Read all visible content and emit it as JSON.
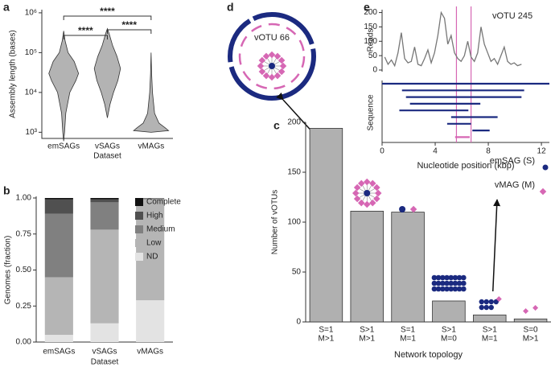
{
  "panel_labels": [
    "a",
    "b",
    "c",
    "d",
    "e"
  ],
  "diagram_d": {
    "label": "vOTU 66"
  },
  "chart_data": [
    {
      "type": "violin",
      "categories": [
        "emSAGs",
        "vSAGs",
        "vMAGs"
      ],
      "x_label": "Dataset",
      "y_label": "Assembly length (bases)",
      "log_scale": true,
      "ylim": [
        700,
        1200000
      ],
      "yticks": [
        {
          "value": 1000,
          "label": "10³"
        },
        {
          "value": 10000,
          "label": "10⁴"
        },
        {
          "value": 100000,
          "label": "10⁵"
        },
        {
          "value": 1000000,
          "label": "10⁶"
        }
      ],
      "color": "#b3b3b3",
      "violins": [
        {
          "y": [
            600,
            1000,
            3000,
            10000,
            20000,
            30000,
            60000,
            100000,
            200000,
            350000
          ],
          "density": [
            0,
            0.05,
            0.12,
            0.35,
            0.7,
            0.85,
            0.6,
            0.25,
            0.08,
            0
          ]
        },
        {
          "y": [
            2300,
            5000,
            10000,
            20000,
            40000,
            80000,
            150000,
            300000,
            400000
          ],
          "density": [
            0,
            0.15,
            0.35,
            0.6,
            0.75,
            0.55,
            0.3,
            0.1,
            0
          ]
        },
        {
          "y": [
            1000,
            1100,
            1300,
            1700,
            3000,
            10000,
            30000,
            100000
          ],
          "density": [
            0,
            1.0,
            0.8,
            0.45,
            0.2,
            0.08,
            0.03,
            0
          ]
        }
      ],
      "annotations": [
        {
          "pair": [
            0,
            2
          ],
          "label": "****"
        },
        {
          "pair": [
            0,
            1
          ],
          "label": "****"
        },
        {
          "pair": [
            1,
            2
          ],
          "label": "****"
        }
      ]
    },
    {
      "type": "stacked_bar",
      "categories": [
        "emSAGs",
        "vSAGs",
        "vMAGs"
      ],
      "x_label": "Dataset",
      "y_label": "Genomes (fraction)",
      "ylim": [
        0,
        1
      ],
      "yticks": [
        {
          "value": 0,
          "label": "0.00"
        },
        {
          "value": 0.25,
          "label": "0.25"
        },
        {
          "value": 0.5,
          "label": "0.50"
        },
        {
          "value": 0.75,
          "label": "0.75"
        },
        {
          "value": 1,
          "label": "1.00"
        }
      ],
      "legend_position": "upper right",
      "series": [
        {
          "name": "ND",
          "color": "#e3e3e3",
          "values": [
            0.05,
            0.13,
            0.29
          ]
        },
        {
          "name": "Low",
          "color": "#b5b5b5",
          "values": [
            0.4,
            0.65,
            0.7
          ]
        },
        {
          "name": "Medium",
          "color": "#808080",
          "values": [
            0.44,
            0.19,
            0.01
          ]
        },
        {
          "name": "High",
          "color": "#505050",
          "values": [
            0.1,
            0.02,
            0
          ]
        },
        {
          "name": "Complete",
          "color": "#111111",
          "values": [
            0.01,
            0.01,
            0
          ]
        }
      ]
    },
    {
      "type": "coverage",
      "annotation": "vOTU 245",
      "x_label": "Nucleotide position (kbp)",
      "y_label": "Reads",
      "y2_label": "Sequence",
      "xlim": [
        0,
        12.6
      ],
      "xticks": [
        0,
        4,
        8,
        12
      ],
      "ylim": [
        0,
        210
      ],
      "yticks": [
        0,
        50,
        100,
        150,
        200
      ],
      "color": "#777777",
      "highlight_color": "#d667b4",
      "x": [
        0.2,
        0.45,
        0.7,
        0.95,
        1.2,
        1.45,
        1.7,
        1.95,
        2.2,
        2.45,
        2.7,
        2.95,
        3.2,
        3.45,
        3.7,
        3.95,
        4.2,
        4.45,
        4.7,
        4.95,
        5.2,
        5.45,
        5.7,
        5.95,
        6.2,
        6.45,
        6.7,
        6.95,
        7.2,
        7.45,
        7.7,
        7.95,
        8.2,
        8.45,
        8.7,
        8.95,
        9.2,
        9.45,
        9.7,
        9.95,
        10.2,
        10.5
      ],
      "values": [
        45,
        20,
        35,
        15,
        60,
        130,
        40,
        25,
        30,
        80,
        20,
        15,
        40,
        70,
        25,
        60,
        120,
        200,
        180,
        90,
        120,
        60,
        40,
        30,
        50,
        100,
        45,
        30,
        60,
        150,
        90,
        60,
        30,
        40,
        20,
        50,
        80,
        30,
        20,
        25,
        15,
        20
      ],
      "highlight": [
        5.6,
        6.7
      ],
      "segments": [
        {
          "start": 0,
          "end": 12.6,
          "color": "#1b2a80"
        },
        {
          "start": 1.5,
          "end": 10.7,
          "color": "#1b2a80"
        },
        {
          "start": 1.8,
          "end": 10.5,
          "color": "#1b2a80"
        },
        {
          "start": 2.1,
          "end": 7.4,
          "color": "#1b2a80"
        },
        {
          "start": 1.3,
          "end": 6.5,
          "color": "#1b2a80"
        },
        {
          "start": 5.2,
          "end": 8.7,
          "color": "#1b2a80"
        },
        {
          "start": 4.9,
          "end": 6.7,
          "color": "#1b2a80"
        },
        {
          "start": 6.8,
          "end": 8.1,
          "color": "#1b2a80"
        },
        {
          "start": 5.5,
          "end": 6.6,
          "color": "#d667b4"
        }
      ]
    },
    {
      "type": "bar",
      "x_label": "Network topology",
      "y_label": "Number of vOTUs",
      "categories": [
        [
          "S=1",
          "M>1"
        ],
        [
          "S>1",
          "M>1"
        ],
        [
          "S=1",
          "M=1"
        ],
        [
          "S>1",
          "M=0"
        ],
        [
          "S>1",
          "M=1"
        ],
        [
          "S=0",
          "M>1"
        ]
      ],
      "values": [
        194,
        111,
        110,
        21,
        7,
        3
      ],
      "color": "#b0b0b0",
      "ylim": [
        0,
        200
      ],
      "yticks": [
        0,
        50,
        100,
        150,
        200
      ],
      "legend": [
        {
          "name": "emSAG (S)",
          "color": "#1b2a80"
        },
        {
          "name": "vMAG (M)",
          "color": "#d667b4"
        }
      ]
    }
  ]
}
